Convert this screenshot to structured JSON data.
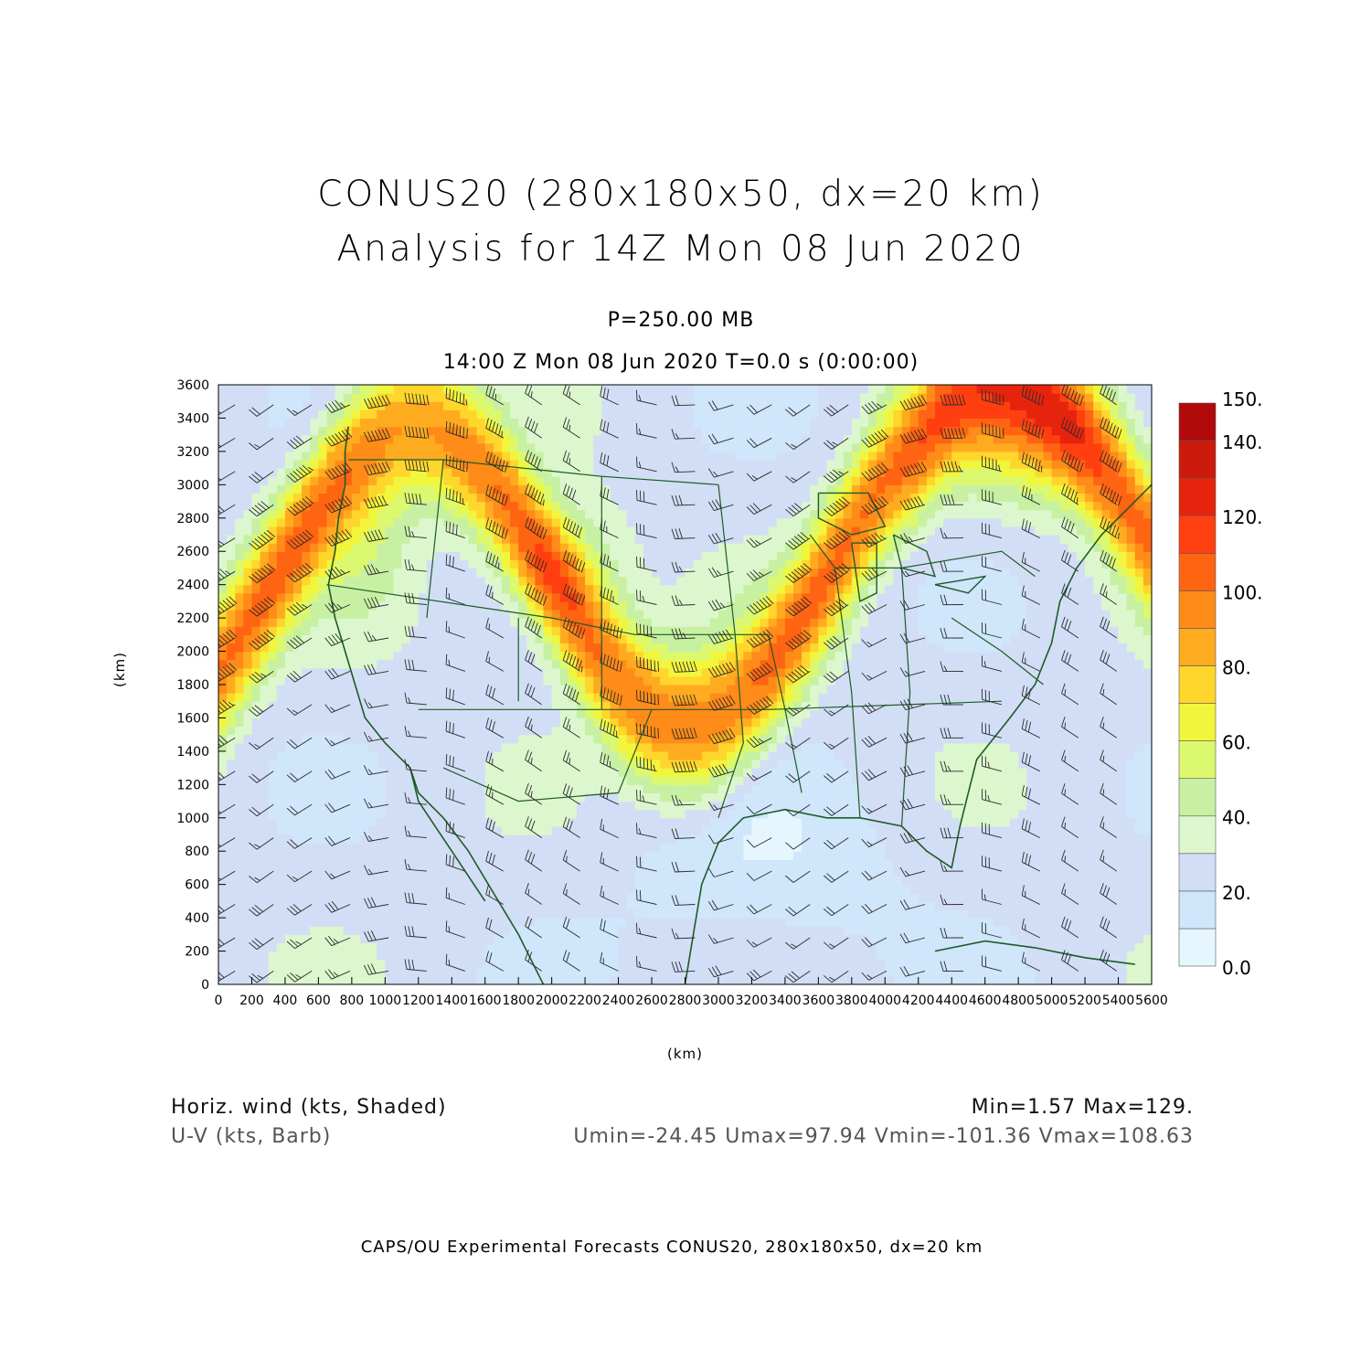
{
  "title": {
    "line1": "CONUS20 (280x180x50, dx=20 km)",
    "line2": "Analysis for 14Z Mon 08 Jun 2020"
  },
  "subtitle": {
    "level": "P=250.00 MB",
    "time": "14:00 Z Mon 08 Jun 2020    T=0.0 s (0:00:00)"
  },
  "axes": {
    "xlabel": "(km)",
    "ylabel": "(km)",
    "xticks": [
      "0",
      "200",
      "400",
      "600",
      "800",
      "1000",
      "1200",
      "1400",
      "1600",
      "1800",
      "2000",
      "2200",
      "2400",
      "2600",
      "2800",
      "3000",
      "3200",
      "3400",
      "3600",
      "3800",
      "4000",
      "4200",
      "4400",
      "4600",
      "4800",
      "5000",
      "5200",
      "5400",
      "5600"
    ],
    "yticks": [
      "0",
      "200",
      "400",
      "600",
      "800",
      "1000",
      "1200",
      "1400",
      "1600",
      "1800",
      "2000",
      "2200",
      "2400",
      "2600",
      "2800",
      "3000",
      "3200",
      "3400",
      "3600"
    ],
    "xlim": [
      0,
      5600
    ],
    "ylim": [
      0,
      3600
    ]
  },
  "colorbar": {
    "labels": [
      "0.0",
      "20.",
      "40.",
      "60.",
      "80.",
      "100.",
      "120.",
      "140.",
      "150."
    ],
    "levels": [
      0,
      10,
      20,
      30,
      40,
      50,
      60,
      70,
      80,
      90,
      100,
      110,
      120,
      130,
      140,
      150
    ],
    "colors": [
      "#e6f6ff",
      "#cfe6fb",
      "#d2def6",
      "#dcf7cd",
      "#c7f0a3",
      "#dcf86e",
      "#f1f53c",
      "#ffd62c",
      "#ffab1f",
      "#ff8b18",
      "#ff6412",
      "#ff3f10",
      "#e6240e",
      "#cc1a0c",
      "#b00a0a"
    ]
  },
  "legend": {
    "field": "Horiz. wind (kts, Shaded)",
    "vector": "U-V (kts, Barb)",
    "minmax": "Min=1.57  Max=129.",
    "uv_stats": "Umin=-24.45  Umax=97.94  Vmin=-101.36  Vmax=108.63"
  },
  "footer": "CAPS/OU Experimental Forecasts  CONUS20, 280x180x50, dx=20 km",
  "map": {
    "map_line_color": "#1f5b26"
  }
}
